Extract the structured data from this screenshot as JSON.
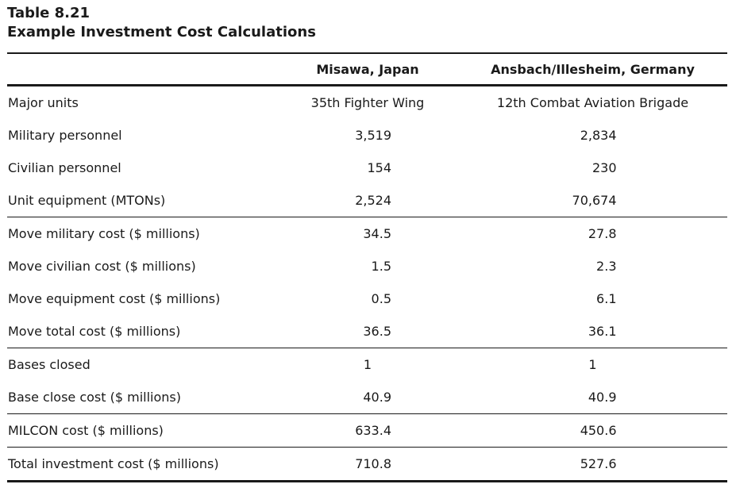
{
  "table": {
    "number": "Table 8.21",
    "caption": "Example Investment Cost Calculations",
    "columns": [
      "",
      "Misawa, Japan",
      "Ansbach/Illesheim, Germany"
    ],
    "rows": [
      {
        "label": "Major units",
        "a": "35th Fighter Wing",
        "b": "12th Combat Aviation Brigade",
        "kind": "text"
      },
      {
        "label": "Military personnel",
        "a": "3,519",
        "b": "2,834",
        "kind": "num"
      },
      {
        "label": "Civilian personnel",
        "a": "154",
        "b": "230",
        "kind": "num"
      },
      {
        "label": "Unit equipment (MTONs)",
        "a": "2,524",
        "b": "70,674",
        "kind": "num",
        "group_end": true
      },
      {
        "label": "Move military cost ($ millions)",
        "a": "34.5",
        "b": "27.8",
        "kind": "num"
      },
      {
        "label": "Move civilian cost ($ millions)",
        "a": "1.5",
        "b": "2.3",
        "kind": "num"
      },
      {
        "label": "Move equipment cost ($ millions)",
        "a": "0.5",
        "b": "6.1",
        "kind": "num"
      },
      {
        "label": "Move total cost ($ millions)",
        "a": "36.5",
        "b": "36.1",
        "kind": "num",
        "group_end": true
      },
      {
        "label": "Bases closed",
        "a": "1",
        "b": "1",
        "kind": "text"
      },
      {
        "label": "Base close cost ($ millions)",
        "a": "40.9",
        "b": "40.9",
        "kind": "num",
        "group_end": true
      },
      {
        "label": "MILCON cost ($ millions)",
        "a": "633.4",
        "b": "450.6",
        "kind": "num",
        "group_end": true
      },
      {
        "label": "Total investment cost ($ millions)",
        "a": "710.8",
        "b": "527.6",
        "kind": "num",
        "last": true
      }
    ]
  }
}
